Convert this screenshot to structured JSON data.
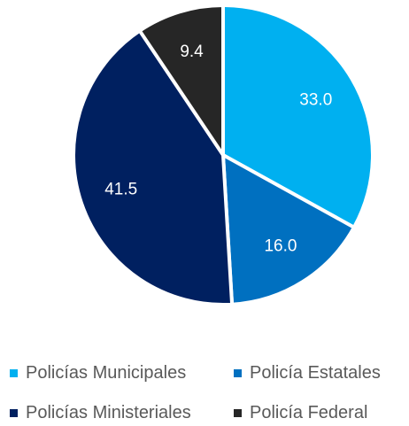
{
  "chart_data": {
    "type": "pie",
    "title": "",
    "categories": [
      "Policías Municipales",
      "Policía Estatales",
      "Policías Ministeriales",
      "Policía Federal"
    ],
    "values": [
      33.0,
      16.0,
      41.5,
      9.4
    ],
    "value_labels": [
      "33.0",
      "16.0",
      "41.5",
      "9.4"
    ],
    "colors": [
      "#00B0F0",
      "#0070C0",
      "#002060",
      "#262626"
    ],
    "legend_position": "bottom",
    "label_color": "#FFFFFF",
    "slice_border_color": "#FFFFFF"
  }
}
